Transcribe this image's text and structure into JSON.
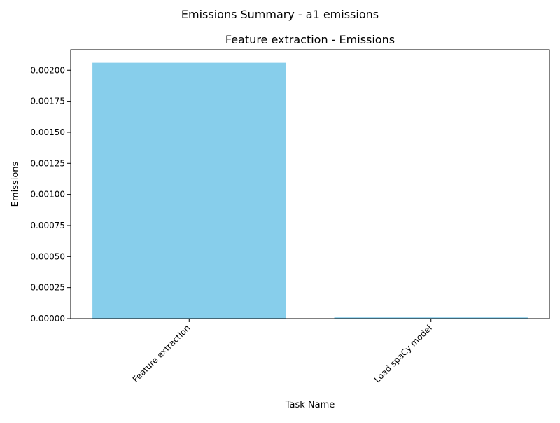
{
  "figure": {
    "suptitle": "Emissions Summary - a1 emissions"
  },
  "colors": {
    "bar": "#87ceeb",
    "axis": "#000000",
    "background": "#ffffff"
  },
  "chart_data": {
    "type": "bar",
    "title": "Feature extraction - Emissions",
    "xlabel": "Task Name",
    "ylabel": "Emissions",
    "categories": [
      "Feature extraction",
      "Load spaCy model"
    ],
    "values": [
      0.00206,
      1e-05
    ],
    "ylim": [
      0,
      0.002165
    ],
    "yticks": [
      "0.00000",
      "0.00025",
      "0.00050",
      "0.00075",
      "0.00100",
      "0.00125",
      "0.00150",
      "0.00175",
      "0.00200"
    ],
    "ytick_values": [
      0,
      0.00025,
      0.0005,
      0.00075,
      0.001,
      0.00125,
      0.0015,
      0.00175,
      0.002
    ],
    "grid": false,
    "legend": "none"
  }
}
